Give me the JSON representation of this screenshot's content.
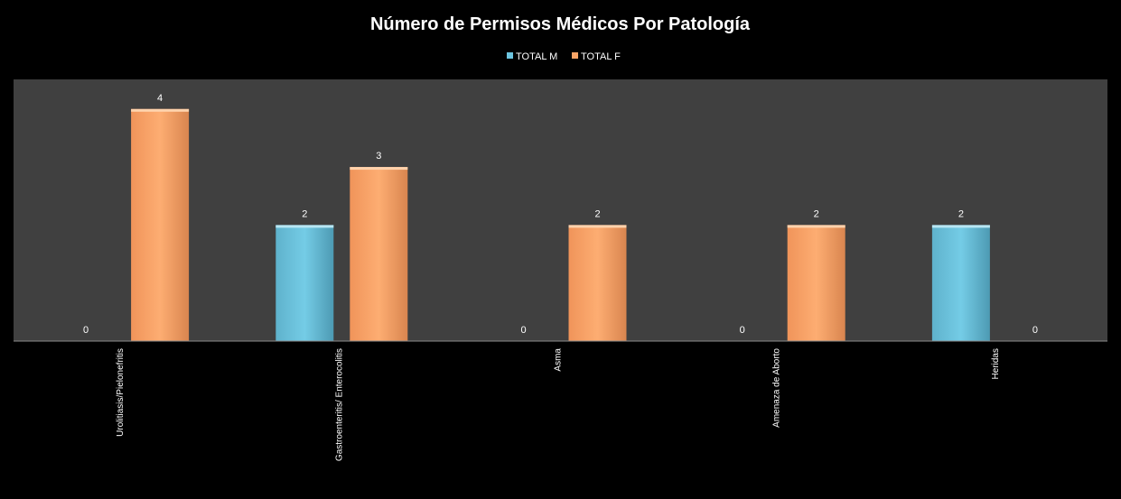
{
  "chart_data": {
    "type": "bar",
    "title": "Número de Permisos Médicos Por Patología",
    "xlabel": "",
    "ylabel": "",
    "categories": [
      "Urolitiasis/Pielonefritis",
      "Gastroenteritis/ Enterocolitis",
      "Asma",
      "Amenaza de Aborto",
      "Heridas"
    ],
    "series": [
      {
        "name": "TOTAL M",
        "values": [
          0,
          2,
          0,
          0,
          2
        ]
      },
      {
        "name": "TOTAL F",
        "values": [
          4,
          3,
          2,
          2,
          0
        ]
      }
    ],
    "ylim": [
      0,
      4.5
    ],
    "legend_position": "top",
    "grid": false
  },
  "colors": {
    "background": "#000000",
    "plot_area": "#404040",
    "series": [
      "#6cc4df",
      "#f9a466"
    ],
    "text": "#ffffff"
  }
}
